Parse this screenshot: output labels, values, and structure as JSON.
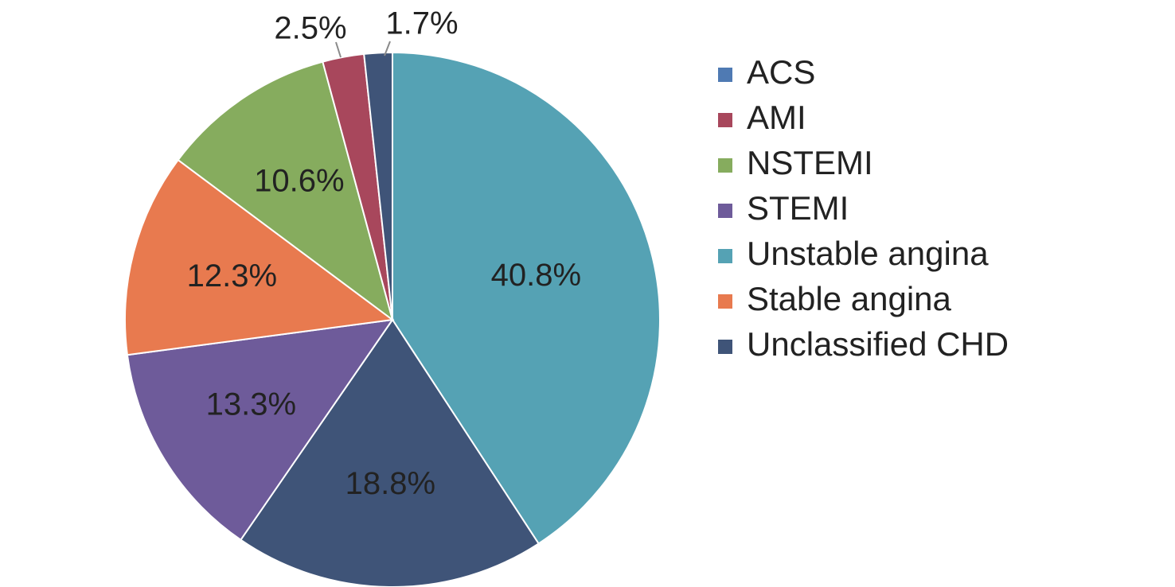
{
  "chart_data": {
    "type": "pie",
    "title": "",
    "start_angle_deg": 0,
    "direction": "clockwise",
    "legend_position": "right",
    "slices": [
      {
        "label": "Unstable angina",
        "value": 40.8,
        "display": "40.8%",
        "color": "#55a2b4"
      },
      {
        "label": "Unclassified CHD",
        "value": 18.8,
        "display": "18.8%",
        "color": "#3f5478"
      },
      {
        "label": "STEMI",
        "value": 13.3,
        "display": "13.3%",
        "color": "#6e5b9a"
      },
      {
        "label": "Stable angina",
        "value": 12.3,
        "display": "12.3%",
        "color": "#e87a4f"
      },
      {
        "label": "NSTEMI",
        "value": 10.6,
        "display": "10.6%",
        "color": "#86ac5e"
      },
      {
        "label": "AMI",
        "value": 2.5,
        "display": "2.5%",
        "color": "#a8475c"
      },
      {
        "label": "Unclassified CHD",
        "value": 1.7,
        "display": "1.7%",
        "color": "#3f5478"
      }
    ],
    "legend": [
      {
        "label": "ACS",
        "color": "#4f7ab3"
      },
      {
        "label": "AMI",
        "color": "#a8475c"
      },
      {
        "label": "NSTEMI",
        "color": "#86ac5e"
      },
      {
        "label": "STEMI",
        "color": "#6e5b9a"
      },
      {
        "label": "Unstable angina",
        "color": "#55a2b4"
      },
      {
        "label": "Stable angina",
        "color": "#e87a4f"
      },
      {
        "label": "Unclassified CHD",
        "color": "#3f5478"
      }
    ]
  }
}
